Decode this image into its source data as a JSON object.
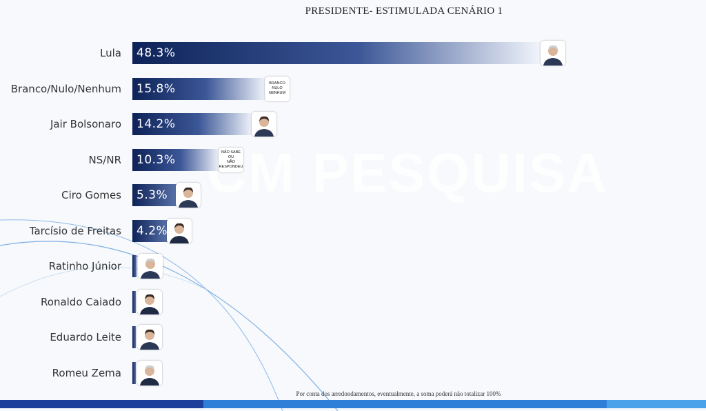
{
  "chart_data": {
    "type": "bar",
    "orientation": "horizontal",
    "title": "PRESIDENTE- ESTIMULADA CENÁRIO 1",
    "categories": [
      "Lula",
      "Branco/Nulo/Nenhum",
      "Jair Bolsonaro",
      "NS/NR",
      "Ciro Gomes",
      "Tarcísio de Freitas",
      "Ratinho Júnior",
      "Ronaldo Caiado",
      "Eduardo Leite",
      "Romeu Zema"
    ],
    "values": [
      48.3,
      15.8,
      14.2,
      10.3,
      5.3,
      4.2,
      0.5,
      0.2,
      0.2,
      0.0
    ],
    "value_labels": [
      "48.3%",
      "15.8%",
      "14.2%",
      "10.3%",
      "5.3%",
      "4.2%",
      "",
      "",
      "",
      ""
    ],
    "grid": false,
    "legend": "none"
  },
  "badges": {
    "branco": "BRANCO\nNULO\nNENHUM",
    "nsnr": "NÃO SABE\nOU\nNÃO RESPONDEU"
  },
  "watermark": "CM PESQUISA",
  "footnote": "Por conta dos arredondamentos, eventualmente, a soma poderá não totalizar 100%",
  "colors": {
    "bar_dark": "#0d2258",
    "bar_light": "#f2f5fb",
    "stripe_dark": "#1b3f9a",
    "stripe_mid": "#2f7fd8",
    "stripe_light": "#4aa3ea"
  },
  "icons": [
    "portrait-photo-icon"
  ]
}
